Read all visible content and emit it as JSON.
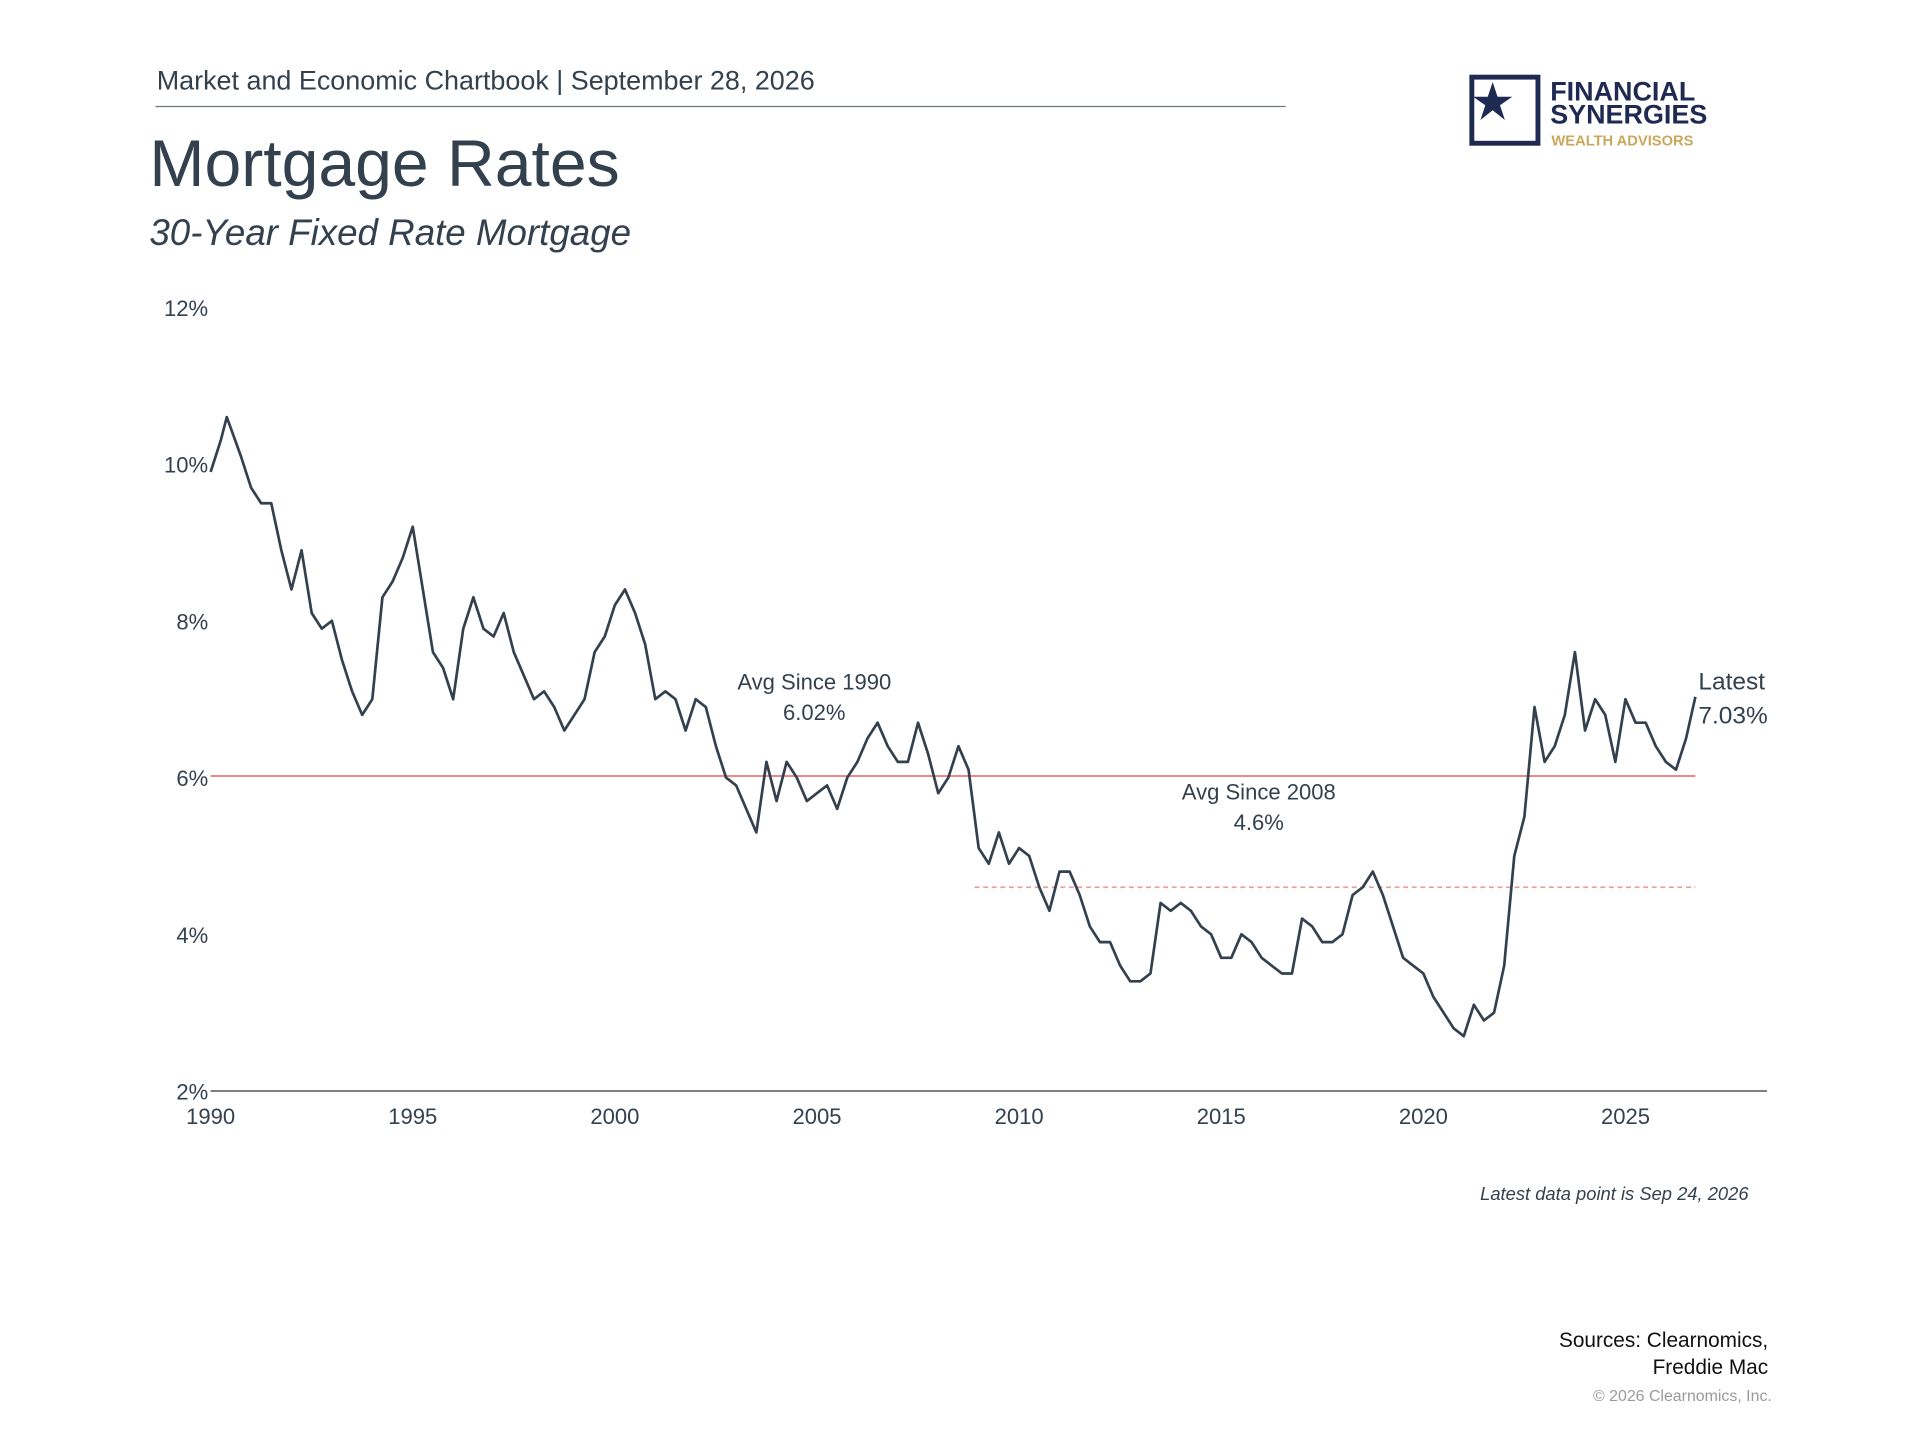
{
  "header": {
    "chartbook": "Market and Economic Chartbook | September 28, 2026",
    "logo": {
      "line1": "FINANCIAL",
      "line2": "SYNERGIES",
      "line3": "WEALTH ADVISORS"
    }
  },
  "chart_data": {
    "type": "line",
    "title": "Mortgage Rates",
    "subtitle": "30-Year Fixed Rate Mortgage",
    "color": "#33414f",
    "x": [
      1990.0,
      1990.25,
      1990.4,
      1990.75,
      1991.0,
      1991.25,
      1991.5,
      1991.75,
      1992.0,
      1992.25,
      1992.5,
      1992.75,
      1993.0,
      1993.25,
      1993.5,
      1993.75,
      1994.0,
      1994.25,
      1994.5,
      1994.75,
      1995.0,
      1995.25,
      1995.5,
      1995.75,
      1996.0,
      1996.25,
      1996.5,
      1996.75,
      1997.0,
      1997.25,
      1997.5,
      1997.75,
      1998.0,
      1998.25,
      1998.5,
      1998.75,
      1999.0,
      1999.25,
      1999.5,
      1999.75,
      2000.0,
      2000.25,
      2000.5,
      2000.75,
      2001.0,
      2001.25,
      2001.5,
      2001.75,
      2002.0,
      2002.25,
      2002.5,
      2002.75,
      2003.0,
      2003.25,
      2003.5,
      2003.75,
      2004.0,
      2004.25,
      2004.5,
      2004.75,
      2005.0,
      2005.25,
      2005.5,
      2005.75,
      2006.0,
      2006.25,
      2006.5,
      2006.75,
      2007.0,
      2007.25,
      2007.5,
      2007.75,
      2008.0,
      2008.25,
      2008.5,
      2008.75,
      2009.0,
      2009.25,
      2009.5,
      2009.75,
      2010.0,
      2010.25,
      2010.5,
      2010.75,
      2011.0,
      2011.25,
      2011.5,
      2011.75,
      2012.0,
      2012.25,
      2012.5,
      2012.75,
      2013.0,
      2013.25,
      2013.5,
      2013.75,
      2014.0,
      2014.25,
      2014.5,
      2014.75,
      2015.0,
      2015.25,
      2015.5,
      2015.75,
      2016.0,
      2016.25,
      2016.5,
      2016.75,
      2017.0,
      2017.25,
      2017.5,
      2017.75,
      2018.0,
      2018.25,
      2018.5,
      2018.75,
      2019.0,
      2019.25,
      2019.5,
      2019.75,
      2020.0,
      2020.25,
      2020.5,
      2020.75,
      2021.0,
      2021.25,
      2021.5,
      2021.75,
      2022.0,
      2022.25,
      2022.5,
      2022.75,
      2023.0,
      2023.25,
      2023.5,
      2023.75,
      2024.0,
      2024.25,
      2024.5,
      2024.75,
      2025.0,
      2025.25,
      2025.5,
      2025.75,
      2026.0,
      2026.25,
      2026.5,
      2026.73
    ],
    "values": [
      9.9,
      10.3,
      10.6,
      10.1,
      9.7,
      9.5,
      9.5,
      8.9,
      8.4,
      8.9,
      8.1,
      7.9,
      8.0,
      7.5,
      7.1,
      6.8,
      7.0,
      8.3,
      8.5,
      8.8,
      9.2,
      8.4,
      7.6,
      7.4,
      7.0,
      7.9,
      8.3,
      7.9,
      7.8,
      8.1,
      7.6,
      7.3,
      7.0,
      7.1,
      6.9,
      6.6,
      6.8,
      7.0,
      7.6,
      7.8,
      8.2,
      8.4,
      8.1,
      7.7,
      7.0,
      7.1,
      7.0,
      6.6,
      7.0,
      6.9,
      6.4,
      6.0,
      5.9,
      5.6,
      5.3,
      6.2,
      5.7,
      6.2,
      6.0,
      5.7,
      5.8,
      5.9,
      5.6,
      6.0,
      6.2,
      6.5,
      6.7,
      6.4,
      6.2,
      6.2,
      6.7,
      6.3,
      5.8,
      6.0,
      6.4,
      6.1,
      5.1,
      4.9,
      5.3,
      4.9,
      5.1,
      5.0,
      4.6,
      4.3,
      4.8,
      4.8,
      4.5,
      4.1,
      3.9,
      3.9,
      3.6,
      3.4,
      3.4,
      3.5,
      4.4,
      4.3,
      4.4,
      4.3,
      4.1,
      4.0,
      3.7,
      3.7,
      4.0,
      3.9,
      3.7,
      3.6,
      3.5,
      3.5,
      4.2,
      4.1,
      3.9,
      3.9,
      4.0,
      4.5,
      4.6,
      4.8,
      4.5,
      4.1,
      3.7,
      3.6,
      3.5,
      3.2,
      3.0,
      2.8,
      2.7,
      3.1,
      2.9,
      3.0,
      3.6,
      5.0,
      5.5,
      6.9,
      6.2,
      6.4,
      6.8,
      7.6,
      6.6,
      7.0,
      6.8,
      6.2,
      7.0,
      6.7,
      6.7,
      6.4,
      6.2,
      6.1,
      6.5,
      7.03
    ],
    "xlim": [
      1990,
      2028.5
    ],
    "xticks": [
      1990,
      1995,
      2000,
      2005,
      2010,
      2015,
      2020,
      2025
    ],
    "ylim": [
      2,
      12
    ],
    "yticks": [
      {
        "value": 2,
        "label": "2%"
      },
      {
        "value": 4,
        "label": "4%"
      },
      {
        "value": 6,
        "label": "6%"
      },
      {
        "value": 8,
        "label": "8%"
      },
      {
        "value": 10,
        "label": "10%"
      },
      {
        "value": 12,
        "label": "12%"
      }
    ],
    "reference_lines": [
      {
        "label": "Avg Since 1990",
        "value": 6.02,
        "value_label": "6.02%",
        "x_start": 1990,
        "color": "#e8777b",
        "style": "solid"
      },
      {
        "label": "Avg Since 2008",
        "value": 4.6,
        "value_label": "4.6%",
        "x_start": 2008.9,
        "color": "#e8a09c",
        "style": "dashed"
      }
    ],
    "latest": {
      "label": "Latest",
      "value": 7.03,
      "value_label": "7.03%"
    },
    "footnote": "Latest data point is Sep 24, 2026",
    "sources": [
      "Sources: Clearnomics,",
      "Freddie Mac"
    ],
    "copyright": "© 2026 Clearnomics, Inc."
  }
}
